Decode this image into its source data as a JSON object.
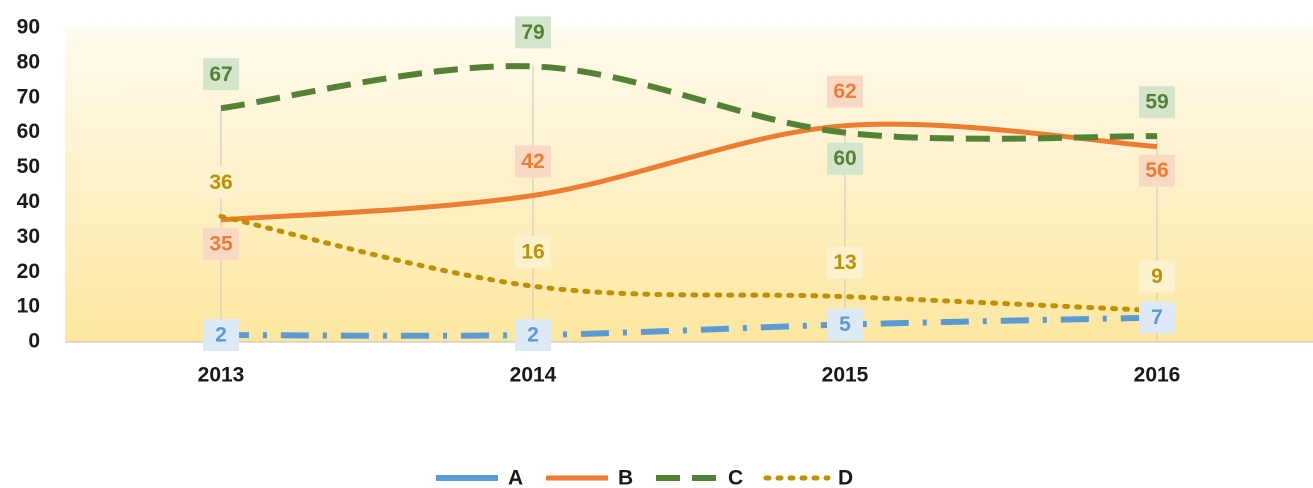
{
  "chart_data": {
    "type": "line",
    "categories": [
      "2013",
      "2014",
      "2015",
      "2016"
    ],
    "series": [
      {
        "name": "A",
        "color": "#5b9bd5",
        "values": [
          2,
          2,
          5,
          7
        ]
      },
      {
        "name": "B",
        "color": "#ed7d31",
        "values": [
          35,
          42,
          62,
          56
        ]
      },
      {
        "name": "C",
        "color": "#548235",
        "values": [
          67,
          79,
          60,
          59
        ]
      },
      {
        "name": "D",
        "color": "#bf9000",
        "values": [
          36,
          16,
          13,
          9
        ]
      }
    ],
    "ylim": [
      0,
      90
    ],
    "yticks": [
      0,
      10,
      20,
      30,
      40,
      50,
      60,
      70,
      80,
      90
    ],
    "smooth": true,
    "legend": "bottom"
  }
}
